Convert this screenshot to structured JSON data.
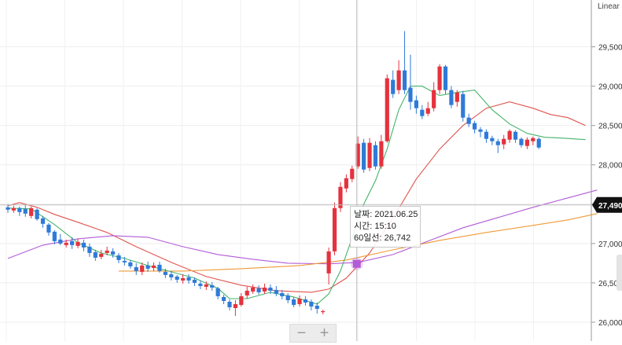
{
  "scale_label": "Linear",
  "colors": {
    "up": "#e5323e",
    "down": "#2f7ad8",
    "ma5": "#45b46a",
    "ma20": "#e0544f",
    "ma60": "#b25bd6",
    "ma120": "#ef9a39",
    "crosshair": "#bfbfbf",
    "price_tag": "#111111"
  },
  "current_price_label": "27,490",
  "tooltip": {
    "date": "날짜: 2021.06.25",
    "time": "시간: 15:10",
    "ma": "60일선: 26,742"
  },
  "zoom": {
    "minus": "−",
    "plus": "+"
  },
  "chart_data": {
    "type": "candlestick",
    "ylim": [
      25900,
      30000
    ],
    "y_ticks": [
      {
        "v": 26000,
        "label": "26,000"
      },
      {
        "v": 26500,
        "label": "26,500"
      },
      {
        "v": 27000,
        "label": "27,000"
      },
      {
        "v": 27500,
        "label": "27,500"
      },
      {
        "v": 28000,
        "label": "28,000"
      },
      {
        "v": 28500,
        "label": "28,500"
      },
      {
        "v": 29000,
        "label": "29,000"
      },
      {
        "v": 29500,
        "label": "29,500"
      }
    ],
    "current_price": 27490,
    "candles": [
      [
        27460,
        27430,
        27500,
        27390
      ],
      [
        27420,
        27450,
        27480,
        27390
      ],
      [
        27450,
        27400,
        27470,
        27350
      ],
      [
        27440,
        27380,
        27490,
        27340
      ],
      [
        27350,
        27450,
        27470,
        27320
      ],
      [
        27430,
        27310,
        27450,
        27290
      ],
      [
        27320,
        27250,
        27350,
        27200
      ],
      [
        27240,
        27140,
        27260,
        27100
      ],
      [
        27150,
        27030,
        27170,
        26990
      ],
      [
        27050,
        27000,
        27120,
        26980
      ],
      [
        26980,
        27010,
        27050,
        26950
      ],
      [
        27030,
        26980,
        27080,
        26930
      ],
      [
        26970,
        27020,
        27060,
        26940
      ],
      [
        27010,
        26950,
        27050,
        26900
      ],
      [
        26960,
        26880,
        27000,
        26830
      ],
      [
        26890,
        26820,
        26920,
        26780
      ],
      [
        26830,
        26870,
        26920,
        26800
      ],
      [
        26880,
        26910,
        26960,
        26850
      ],
      [
        26900,
        26860,
        26940,
        26820
      ],
      [
        26850,
        26790,
        26880,
        26750
      ],
      [
        26780,
        26760,
        26830,
        26720
      ],
      [
        26760,
        26710,
        26790,
        26680
      ],
      [
        26700,
        26650,
        26750,
        26600
      ],
      [
        26640,
        26720,
        26760,
        26600
      ],
      [
        26720,
        26680,
        26770,
        26640
      ],
      [
        26690,
        26720,
        26760,
        26650
      ],
      [
        26730,
        26650,
        26770,
        26630
      ],
      [
        26640,
        26600,
        26680,
        26560
      ],
      [
        26610,
        26570,
        26650,
        26530
      ],
      [
        26580,
        26540,
        26600,
        26500
      ],
      [
        26530,
        26560,
        26610,
        26490
      ],
      [
        26570,
        26530,
        26610,
        26490
      ],
      [
        26540,
        26500,
        26570,
        26460
      ],
      [
        26490,
        26460,
        26530,
        26420
      ],
      [
        26450,
        26480,
        26520,
        26410
      ],
      [
        26470,
        26440,
        26510,
        26400
      ],
      [
        26430,
        26330,
        26450,
        26290
      ],
      [
        26320,
        26270,
        26350,
        26230
      ],
      [
        26260,
        26190,
        26290,
        26150
      ],
      [
        26180,
        26230,
        26280,
        26080
      ],
      [
        26220,
        26330,
        26370,
        26200
      ],
      [
        26340,
        26400,
        26450,
        26300
      ],
      [
        26390,
        26440,
        26480,
        26360
      ],
      [
        26430,
        26380,
        26470,
        26350
      ],
      [
        26390,
        26440,
        26490,
        26360
      ],
      [
        26440,
        26400,
        26480,
        26360
      ],
      [
        26410,
        26360,
        26460,
        26330
      ],
      [
        26370,
        26330,
        26410,
        26290
      ],
      [
        26340,
        26280,
        26370,
        26240
      ],
      [
        26290,
        26220,
        26320,
        26190
      ],
      [
        26230,
        26300,
        26340,
        26200
      ],
      [
        26290,
        26250,
        26330,
        26210
      ],
      [
        26260,
        26200,
        26290,
        26150
      ],
      [
        26210,
        26170,
        26250,
        26110
      ],
      [
        26140,
        26140,
        26160,
        26100
      ],
      [
        26620,
        26900,
        26950,
        26480
      ],
      [
        26900,
        27450,
        27520,
        26850
      ],
      [
        27450,
        27720,
        27780,
        27400
      ],
      [
        27700,
        27830,
        27880,
        27650
      ],
      [
        27820,
        27950,
        27990,
        27780
      ],
      [
        27980,
        28270,
        28360,
        27950
      ],
      [
        28280,
        27940,
        28330,
        27900
      ],
      [
        27960,
        28280,
        28340,
        27920
      ],
      [
        28250,
        27980,
        28300,
        27940
      ],
      [
        27980,
        28300,
        28380,
        27950
      ],
      [
        28300,
        29100,
        29150,
        28280
      ],
      [
        29080,
        28900,
        29200,
        28850
      ],
      [
        28950,
        29200,
        29330,
        28900
      ],
      [
        29200,
        28950,
        29700,
        28900
      ],
      [
        28980,
        28800,
        29400,
        28700
      ],
      [
        28820,
        28720,
        28880,
        28650
      ],
      [
        28700,
        28620,
        28760,
        28580
      ],
      [
        28650,
        28720,
        28800,
        28620
      ],
      [
        28720,
        28950,
        29050,
        28680
      ],
      [
        28950,
        29250,
        29280,
        28900
      ],
      [
        29250,
        28950,
        29270,
        28900
      ],
      [
        28950,
        28760,
        29000,
        28720
      ],
      [
        28800,
        28920,
        28950,
        28740
      ],
      [
        28900,
        28600,
        28940,
        28550
      ],
      [
        28600,
        28520,
        28650,
        28480
      ],
      [
        28530,
        28450,
        28560,
        28400
      ],
      [
        28450,
        28420,
        28480,
        28350
      ],
      [
        28420,
        28330,
        28450,
        28280
      ],
      [
        28340,
        28300,
        28370,
        28250
      ],
      [
        28300,
        28250,
        28330,
        28150
      ],
      [
        28260,
        28330,
        28380,
        28200
      ],
      [
        28320,
        28430,
        28450,
        28280
      ],
      [
        28420,
        28320,
        28440,
        28280
      ],
      [
        28330,
        28250,
        28350,
        28220
      ],
      [
        28240,
        28320,
        28350,
        28200
      ],
      [
        28300,
        28340,
        28360,
        28250
      ],
      [
        28330,
        28220,
        28350,
        28200
      ]
    ],
    "ma_lines": [
      {
        "key": "ma20",
        "values": [
          [
            0,
            27480
          ],
          [
            2,
            27520
          ],
          [
            5,
            27460
          ],
          [
            8,
            27370
          ],
          [
            12,
            27270
          ],
          [
            17,
            27140
          ],
          [
            22,
            26960
          ],
          [
            28,
            26760
          ],
          [
            34,
            26580
          ],
          [
            40,
            26470
          ],
          [
            46,
            26400
          ],
          [
            52,
            26380
          ],
          [
            55,
            26420
          ],
          [
            58,
            26560
          ],
          [
            62,
            26880
          ],
          [
            66,
            27320
          ],
          [
            70,
            27820
          ],
          [
            74,
            28200
          ],
          [
            78,
            28500
          ],
          [
            82,
            28720
          ],
          [
            86,
            28800
          ],
          [
            90,
            28720
          ],
          [
            93,
            28640
          ],
          [
            96,
            28600
          ],
          [
            99,
            28500
          ]
        ]
      },
      {
        "key": "ma60",
        "values": [
          [
            0,
            26810
          ],
          [
            6,
            26980
          ],
          [
            12,
            27060
          ],
          [
            18,
            27100
          ],
          [
            24,
            27080
          ],
          [
            30,
            26960
          ],
          [
            36,
            26860
          ],
          [
            42,
            26800
          ],
          [
            48,
            26750
          ],
          [
            55,
            26742
          ],
          [
            60,
            26760
          ],
          [
            66,
            26860
          ],
          [
            72,
            27030
          ],
          [
            78,
            27200
          ],
          [
            84,
            27330
          ],
          [
            90,
            27460
          ],
          [
            96,
            27580
          ],
          [
            101,
            27680
          ]
        ]
      },
      {
        "key": "ma120",
        "values": [
          [
            19,
            26650
          ],
          [
            30,
            26650
          ],
          [
            40,
            26680
          ],
          [
            50,
            26720
          ],
          [
            58,
            26790
          ],
          [
            66,
            26920
          ],
          [
            74,
            27040
          ],
          [
            82,
            27140
          ],
          [
            90,
            27230
          ],
          [
            96,
            27300
          ],
          [
            101,
            27380
          ]
        ]
      },
      {
        "key": "ma5",
        "values": [
          [
            0,
            27450
          ],
          [
            4,
            27440
          ],
          [
            8,
            27240
          ],
          [
            12,
            27010
          ],
          [
            16,
            26880
          ],
          [
            20,
            26810
          ],
          [
            24,
            26720
          ],
          [
            28,
            26640
          ],
          [
            32,
            26560
          ],
          [
            36,
            26430
          ],
          [
            38,
            26300
          ],
          [
            41,
            26300
          ],
          [
            45,
            26380
          ],
          [
            49,
            26320
          ],
          [
            53,
            26230
          ],
          [
            55,
            26360
          ],
          [
            57,
            26650
          ],
          [
            59,
            27070
          ],
          [
            61,
            27500
          ],
          [
            63,
            27800
          ],
          [
            65,
            28200
          ],
          [
            67,
            28700
          ],
          [
            69,
            29000
          ],
          [
            71,
            29000
          ],
          [
            74,
            28880
          ],
          [
            77,
            28920
          ],
          [
            80,
            28950
          ],
          [
            83,
            28700
          ],
          [
            86,
            28520
          ],
          [
            89,
            28400
          ],
          [
            92,
            28350
          ],
          [
            95,
            28340
          ],
          [
            99,
            28320
          ]
        ]
      }
    ],
    "crosshair_index": 59.8
  }
}
